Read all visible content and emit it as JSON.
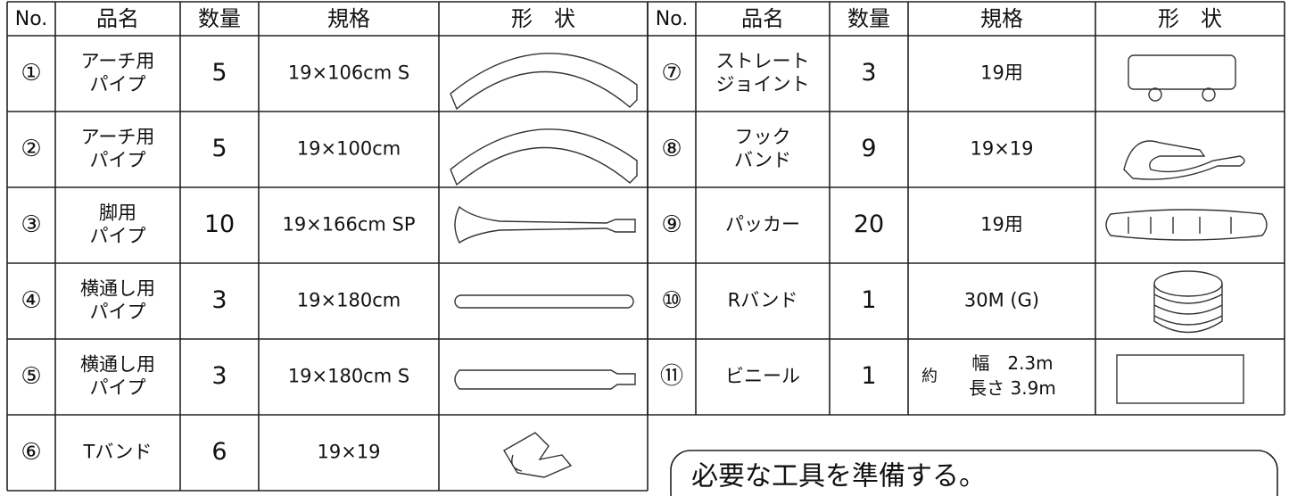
{
  "table": {
    "left": {
      "header": [
        "No.",
        "品名",
        "数量",
        "規格",
        "形　状"
      ],
      "rows": [
        {
          "no": "①",
          "name": [
            "アーチ用",
            "パイプ"
          ],
          "qty": 5,
          "spec": "19×106cm S"
        },
        {
          "no": "②",
          "name": [
            "アーチ用",
            "パイプ"
          ],
          "qty": 5,
          "spec": "19×100cm"
        },
        {
          "no": "③",
          "name": [
            "脚用",
            "パイプ"
          ],
          "qty": 10,
          "spec": "19×166cm SP"
        },
        {
          "no": "④",
          "name": [
            "横通し用",
            "パイプ"
          ],
          "qty": 3,
          "spec": "19×180cm"
        },
        {
          "no": "⑤",
          "name": [
            "横通し用",
            "パイプ"
          ],
          "qty": 3,
          "spec": "19×180cm S"
        },
        {
          "no": "⑥",
          "name": [
            "Tバンド"
          ],
          "qty": 6,
          "spec": "19×19"
        }
      ]
    },
    "right": {
      "header": [
        "No.",
        "品名",
        "数量",
        "規格",
        "形　状"
      ],
      "rows": [
        {
          "no": "⑦",
          "name": [
            "ストレート",
            "ジョイント"
          ],
          "qty": 3,
          "spec": "19用"
        },
        {
          "no": "⑧",
          "name": [
            "フック",
            "バンド"
          ],
          "qty": 9,
          "spec": "19×19"
        },
        {
          "no": "⑨",
          "name": [
            "パッカー"
          ],
          "qty": 20,
          "spec": "19用"
        },
        {
          "no": "⑩",
          "name": [
            "Rバンド"
          ],
          "qty": 1,
          "spec": "30M (G)"
        },
        {
          "no": "⑪",
          "name": [
            "ビニール"
          ],
          "qty": 1,
          "spec_prefix": "約",
          "spec": [
            "幅　2.3m",
            "長さ 3.9m"
          ]
        }
      ]
    }
  },
  "note": "必要な工具を準備する。"
}
